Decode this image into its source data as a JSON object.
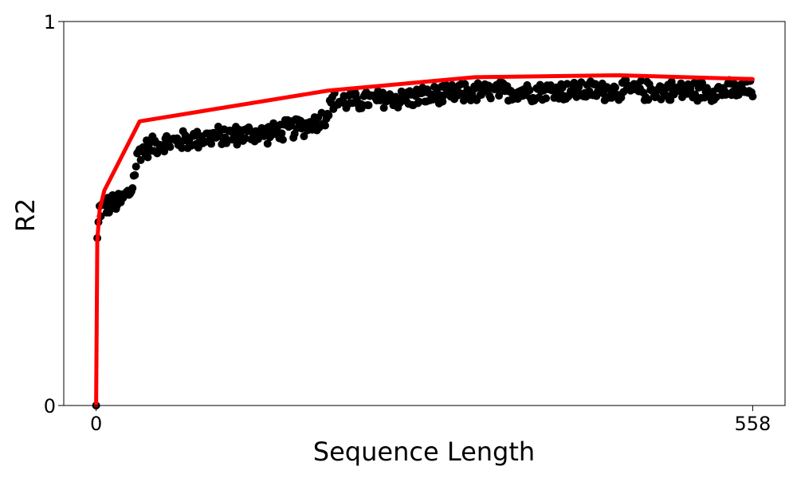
{
  "chart_data": {
    "type": "scatter",
    "title": "",
    "xlabel": "Sequence Length",
    "ylabel": "R2",
    "xlim": [
      -27.5,
      585.5
    ],
    "ylim": [
      0,
      1
    ],
    "x_ticks": [
      0,
      558
    ],
    "x_tick_labels": [
      "0",
      "558"
    ],
    "y_ticks": [
      0,
      1
    ],
    "y_tick_labels": [
      "0",
      "1"
    ],
    "grid": false,
    "legend": "none",
    "series": [
      {
        "kind": "scatter",
        "color": "#000000",
        "anchors": [
          {
            "x": 0,
            "y": 0.0
          },
          {
            "x": 1,
            "y": 0.43
          },
          {
            "x": 2,
            "y": 0.47
          },
          {
            "x": 3,
            "y": 0.51
          },
          {
            "x": 10,
            "y": 0.52
          },
          {
            "x": 20,
            "y": 0.53
          },
          {
            "x": 30,
            "y": 0.56
          },
          {
            "x": 36,
            "y": 0.66
          },
          {
            "x": 50,
            "y": 0.68
          },
          {
            "x": 100,
            "y": 0.7
          },
          {
            "x": 150,
            "y": 0.71
          },
          {
            "x": 180,
            "y": 0.73
          },
          {
            "x": 195,
            "y": 0.75
          },
          {
            "x": 200,
            "y": 0.79
          },
          {
            "x": 260,
            "y": 0.8
          },
          {
            "x": 320,
            "y": 0.815
          },
          {
            "x": 380,
            "y": 0.82
          },
          {
            "x": 440,
            "y": 0.82
          },
          {
            "x": 500,
            "y": 0.82
          },
          {
            "x": 558,
            "y": 0.82
          }
        ],
        "point_count": 560,
        "spread": 0.03
      },
      {
        "kind": "line",
        "color": "#ff0000",
        "x": [
          0,
          1,
          3,
          7,
          37,
          197,
          322,
          445,
          558
        ],
        "y": [
          0.0,
          0.43,
          0.51,
          0.56,
          0.74,
          0.82,
          0.855,
          0.86,
          0.85
        ]
      }
    ]
  }
}
